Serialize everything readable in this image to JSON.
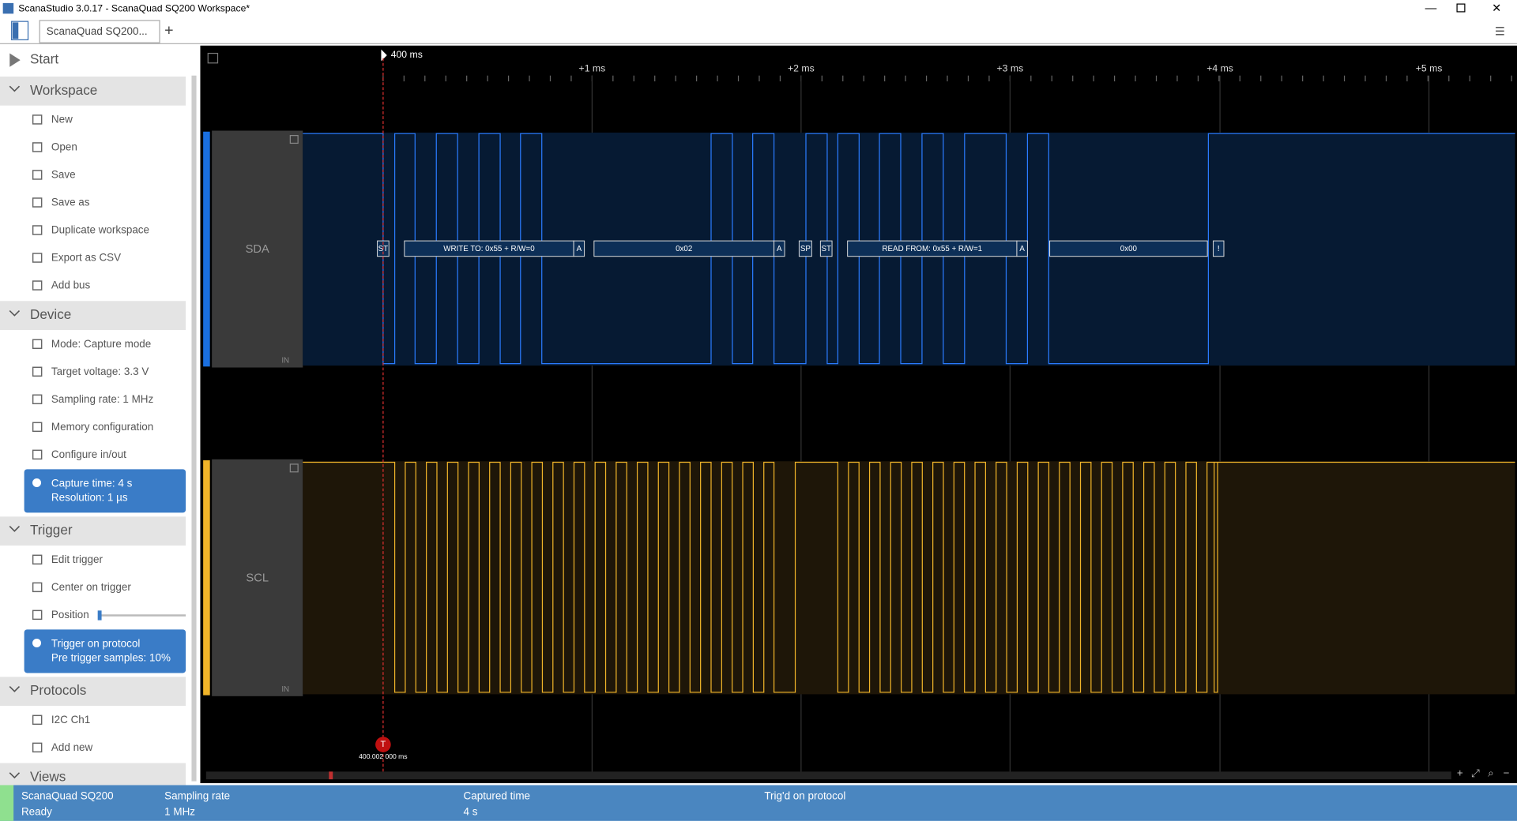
{
  "window": {
    "title": "ScanaStudio 3.0.17 - ScanaQuad SQ200 Workspace*",
    "tab": "ScanaQuad SQ200..."
  },
  "sidebar": [
    {
      "title": "Start"
    },
    {
      "title": "Workspace",
      "items": [
        "New",
        "Open",
        "Save",
        "Save as",
        "Duplicate workspace",
        "Export as CSV",
        "Add bus"
      ]
    },
    {
      "title": "Device",
      "items": [
        "Mode: Capture mode",
        "Target voltage: 3.3 V",
        "Sampling rate: 1 MHz",
        "Memory configuration",
        "Configure in/out"
      ],
      "info": [
        "Capture time: 4 s",
        "Resolution: 1 µs"
      ]
    },
    {
      "title": "Trigger",
      "items": [
        "Edit trigger",
        "Center on trigger",
        "Position"
      ],
      "info": [
        "Trigger on protocol",
        "Pre trigger samples: 10%"
      ]
    },
    {
      "title": "Protocols",
      "items": [
        "I2C Ch1",
        "Add new"
      ]
    },
    {
      "title": "Views"
    }
  ],
  "timeline": {
    "origin": "400 ms",
    "ticks": [
      "+1 ms",
      "+2 ms",
      "+3 ms",
      "+4 ms",
      "+5 ms"
    ],
    "trigger_label": "400.002 000 ms",
    "trigger_marker": "T"
  },
  "channels": [
    {
      "name": "SDA",
      "io": "IN"
    },
    {
      "name": "SCL",
      "io": "IN"
    }
  ],
  "frames": [
    "ST",
    "WRITE TO: 0x55 + R/W=0",
    "A",
    "0x02",
    "A",
    "SP",
    "ST",
    "READ FROM: 0x55 + R/W=1",
    "A",
    "0x00",
    "!"
  ],
  "status": [
    [
      "ScanaQuad SQ200",
      "Ready"
    ],
    [
      "Sampling rate",
      "1 MHz"
    ],
    [
      "Captured time",
      "4 s"
    ],
    [
      "Trig'd on protocol"
    ]
  ]
}
